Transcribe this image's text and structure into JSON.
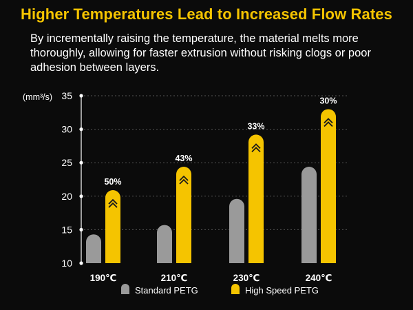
{
  "header": {
    "title": "Higher Temperatures Lead to Increased Flow Rates",
    "subtitle": "By incrementally raising the temperature, the material melts more thoroughly, allowing for faster extrusion without risking clogs or poor adhesion between layers."
  },
  "colors": {
    "accent": "#f5c400",
    "standard": "#9a9a9a",
    "high_speed": "#f5c400",
    "background": "#0b0b0b"
  },
  "chart_data": {
    "type": "bar",
    "ylabel": "(mm³/s)",
    "ylim": [
      10,
      35
    ],
    "yticks": [
      10,
      15,
      20,
      25,
      30,
      35
    ],
    "categories": [
      "190℃",
      "210℃",
      "230℃",
      "240℃"
    ],
    "series": [
      {
        "name": "Standard PETG",
        "values": [
          14.3,
          15.7,
          19.6,
          24.4
        ]
      },
      {
        "name": "High Speed PETG",
        "values": [
          20.9,
          24.4,
          29.2,
          33.0
        ]
      }
    ],
    "annotations": [
      "50%",
      "43%",
      "33%",
      "30%"
    ],
    "legend": "bottom",
    "grid": true
  }
}
